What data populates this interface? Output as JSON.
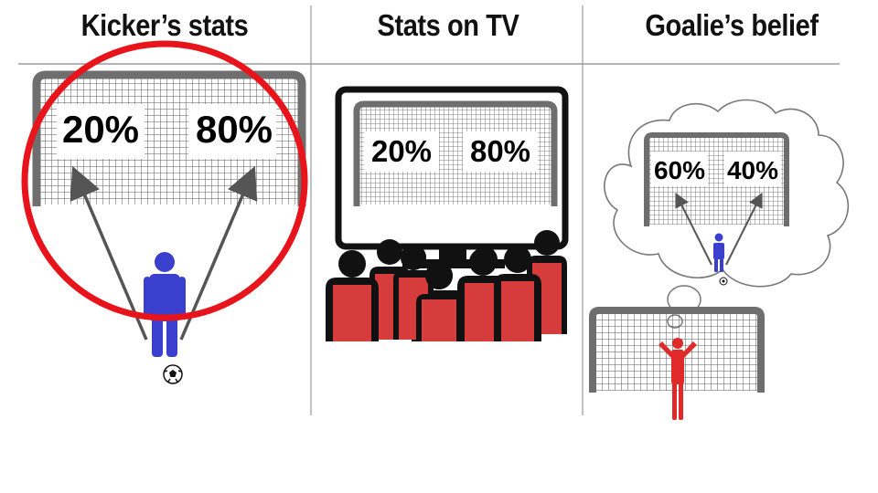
{
  "panels": [
    {
      "title": "Kicker’s stats",
      "left_pct": "20%",
      "right_pct": "80%"
    },
    {
      "title": "Stats on TV",
      "left_pct": "20%",
      "right_pct": "80%"
    },
    {
      "title": "Goalie’s belief",
      "left_pct": "60%",
      "right_pct": "40%"
    }
  ],
  "colors": {
    "highlight_circle": "#e8141b",
    "kicker": "#3a3fce",
    "goalie": "#e02a2a",
    "audience_jersey": "#d63c3c",
    "goal_frame": "#666666",
    "net_grid": "#555555"
  },
  "icons": [
    "goal-net-icon",
    "kicker-figure-icon",
    "soccer-ball-icon",
    "tv-screen-icon",
    "audience-icon",
    "thought-cloud-icon",
    "goalie-figure-icon",
    "highlight-circle-icon"
  ]
}
